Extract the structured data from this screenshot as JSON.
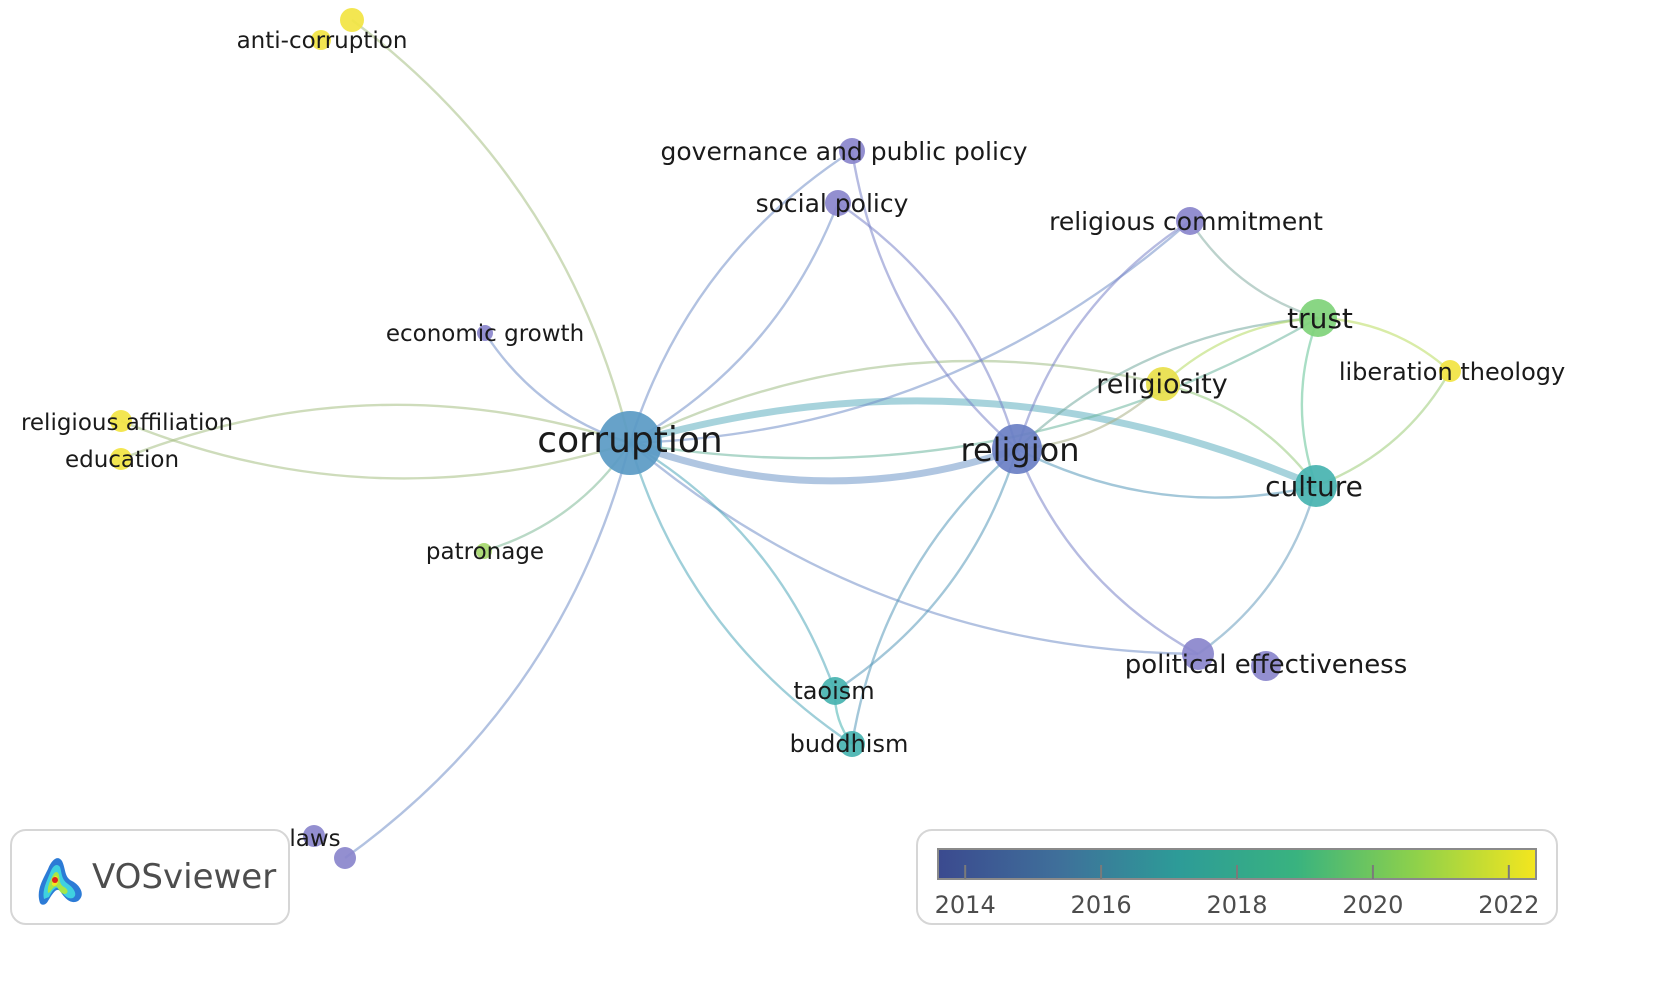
{
  "brand": {
    "name": "VOSviewer",
    "logo_icon": "vosviewer-logo-icon"
  },
  "legend": {
    "ticks": [
      "2014",
      "2016",
      "2018",
      "2020",
      "2022"
    ],
    "tick_years": [
      2014,
      2016,
      2018,
      2020,
      2022
    ],
    "year_range": [
      2013.6,
      2022.4
    ],
    "gradient": [
      "#3b4a8f",
      "#3f6f9a",
      "#2d9b98",
      "#39b37f",
      "#8fd14a",
      "#f4e61e"
    ]
  },
  "colors": {
    "purple": "#7f7fc8",
    "steel": "#5a9ac4",
    "teal": "#46b3b0",
    "green": "#7fd37a",
    "yellow": "#f2e442"
  },
  "nodes": [
    {
      "id": "corruption",
      "label": "corruption",
      "color": "#5a9ac4"
    },
    {
      "id": "religion",
      "label": "religion",
      "color": "#6a7fc4"
    },
    {
      "id": "culture",
      "label": "culture",
      "color": "#46b3b0"
    },
    {
      "id": "trust",
      "label": "trust",
      "color": "#7fd37a"
    },
    {
      "id": "religiosity",
      "label": "religiosity",
      "color": "#e8e04a"
    },
    {
      "id": "liberation-theology",
      "label": "liberation theology",
      "color": "#f2e442"
    },
    {
      "id": "religious-commitment",
      "label": "religious commitment",
      "color": "#8a86cc"
    },
    {
      "id": "governance-and-public-policy",
      "label": "governance and public policy",
      "color": "#8a86cc"
    },
    {
      "id": "social-policy",
      "label": "social policy",
      "color": "#8a86cc"
    },
    {
      "id": "economic-growth",
      "label": "economic growth",
      "color": "#8a86cc"
    },
    {
      "id": "anti-corruption",
      "label": "anti-corruption",
      "color": "#f2e442"
    },
    {
      "id": "religious-affiliation",
      "label": "religious affiliation",
      "color": "#f2e442"
    },
    {
      "id": "education",
      "label": "education",
      "color": "#f2e442"
    },
    {
      "id": "patronage",
      "label": "patronage",
      "color": "#a6d86c"
    },
    {
      "id": "political-effectiveness",
      "label": "political effectiveness",
      "color": "#8a86cc"
    },
    {
      "id": "taoism",
      "label": "taoism",
      "color": "#46b3b0"
    },
    {
      "id": "buddhism",
      "label": "buddhism",
      "color": "#46b3b0"
    },
    {
      "id": "laws",
      "label": "laws",
      "color": "#8a86cc"
    }
  ],
  "edges": [
    [
      "corruption",
      "religion"
    ],
    [
      "corruption",
      "culture"
    ],
    [
      "corruption",
      "trust"
    ],
    [
      "corruption",
      "religiosity"
    ],
    [
      "corruption",
      "religious-commitment"
    ],
    [
      "corruption",
      "governance-and-public-policy"
    ],
    [
      "corruption",
      "social-policy"
    ],
    [
      "corruption",
      "economic-growth"
    ],
    [
      "corruption",
      "anti-corruption"
    ],
    [
      "corruption",
      "religious-affiliation"
    ],
    [
      "corruption",
      "education"
    ],
    [
      "corruption",
      "patronage"
    ],
    [
      "corruption",
      "political-effectiveness"
    ],
    [
      "corruption",
      "taoism"
    ],
    [
      "corruption",
      "buddhism"
    ],
    [
      "corruption",
      "laws"
    ],
    [
      "religion",
      "culture"
    ],
    [
      "religion",
      "trust"
    ],
    [
      "religion",
      "religiosity"
    ],
    [
      "religion",
      "religious-commitment"
    ],
    [
      "religion",
      "social-policy"
    ],
    [
      "religion",
      "governance-and-public-policy"
    ],
    [
      "religion",
      "political-effectiveness"
    ],
    [
      "religion",
      "taoism"
    ],
    [
      "religion",
      "buddhism"
    ],
    [
      "culture",
      "trust"
    ],
    [
      "culture",
      "liberation-theology"
    ],
    [
      "culture",
      "political-effectiveness"
    ],
    [
      "culture",
      "religiosity"
    ],
    [
      "trust",
      "religious-commitment"
    ],
    [
      "trust",
      "religiosity"
    ],
    [
      "trust",
      "liberation-theology"
    ],
    [
      "taoism",
      "buddhism"
    ]
  ]
}
